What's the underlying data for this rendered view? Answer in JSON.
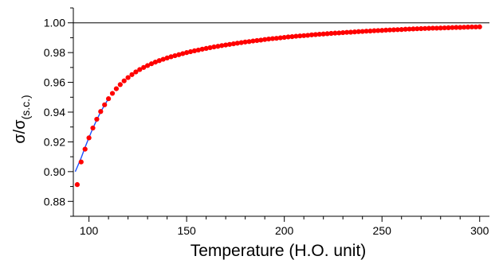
{
  "chart_data": {
    "type": "scatter",
    "title": "",
    "xlabel": "Temperature (H.O. unit)",
    "ylabel_main": "σ/σ",
    "ylabel_sub": "(s.c.)",
    "xlim": [
      92,
      305
    ],
    "ylim": [
      0.87,
      1.01
    ],
    "x_ticks": [
      100,
      150,
      200,
      250,
      300
    ],
    "x_tick_labels": [
      "100",
      "150",
      "200",
      "250",
      "300"
    ],
    "y_ticks": [
      0.88,
      0.9,
      0.92,
      0.94,
      0.96,
      0.98,
      1.0
    ],
    "y_tick_labels": [
      "0.88",
      "0.90",
      "0.92",
      "0.94",
      "0.96",
      "0.98",
      "1.00"
    ],
    "reference_line_y": 1.0,
    "grid": false,
    "legend": "none",
    "series": [
      {
        "kind": "points",
        "color": "#ff0000",
        "x": [
          94,
          96,
          98,
          100,
          102,
          104,
          106,
          108,
          110,
          112,
          114,
          116,
          118,
          120,
          122,
          124,
          126,
          128,
          130,
          132,
          134,
          136,
          138,
          140,
          142,
          144,
          146,
          148,
          150,
          152,
          154,
          156,
          158,
          160,
          162,
          164,
          166,
          168,
          170,
          172,
          174,
          176,
          178,
          180,
          182,
          184,
          186,
          188,
          190,
          192,
          194,
          196,
          198,
          200,
          202,
          204,
          206,
          208,
          210,
          212,
          214,
          216,
          218,
          220,
          222,
          224,
          226,
          228,
          230,
          232,
          234,
          236,
          238,
          240,
          242,
          244,
          246,
          248,
          250,
          252,
          254,
          256,
          258,
          260,
          262,
          264,
          266,
          268,
          270,
          272,
          274,
          276,
          278,
          280,
          282,
          284,
          286,
          288,
          290,
          292,
          294,
          296,
          298,
          300
        ],
        "y": [
          0.8913,
          0.9065,
          0.9151,
          0.9227,
          0.9293,
          0.9352,
          0.9404,
          0.9449,
          0.949,
          0.9526,
          0.9557,
          0.9585,
          0.961,
          0.9632,
          0.9652,
          0.967,
          0.9686,
          0.97,
          0.9713,
          0.9725,
          0.9736,
          0.9746,
          0.9755,
          0.9764,
          0.9772,
          0.9779,
          0.9786,
          0.9793,
          0.98,
          0.9806,
          0.9812,
          0.9817,
          0.9823,
          0.9828,
          0.9833,
          0.9838,
          0.9842,
          0.9847,
          0.9851,
          0.9855,
          0.9859,
          0.9863,
          0.9867,
          0.9871,
          0.9874,
          0.9878,
          0.9881,
          0.9884,
          0.9888,
          0.9891,
          0.9894,
          0.9896,
          0.9899,
          0.9902,
          0.9905,
          0.9907,
          0.991,
          0.9912,
          0.9914,
          0.9916,
          0.9919,
          0.9921,
          0.9923,
          0.9925,
          0.9927,
          0.9929,
          0.9931,
          0.9932,
          0.9934,
          0.9936,
          0.9937,
          0.9939,
          0.9941,
          0.9942,
          0.9944,
          0.9945,
          0.9947,
          0.9948,
          0.9949,
          0.9951,
          0.9952,
          0.9953,
          0.9954,
          0.9955,
          0.9957,
          0.9958,
          0.9959,
          0.996,
          0.9961,
          0.9962,
          0.9963,
          0.9964,
          0.9964,
          0.9965,
          0.9966,
          0.9967,
          0.9968,
          0.9969,
          0.9969,
          0.997,
          0.9971,
          0.9972,
          0.9972,
          0.9973
        ]
      },
      {
        "kind": "line",
        "color": "#1a4fff",
        "x": [
          93,
          96,
          98,
          100,
          102,
          104,
          106,
          108,
          110
        ],
        "y": [
          0.9,
          0.9092,
          0.9163,
          0.9229,
          0.9291,
          0.9348,
          0.9401,
          0.9448,
          0.949
        ]
      }
    ]
  }
}
